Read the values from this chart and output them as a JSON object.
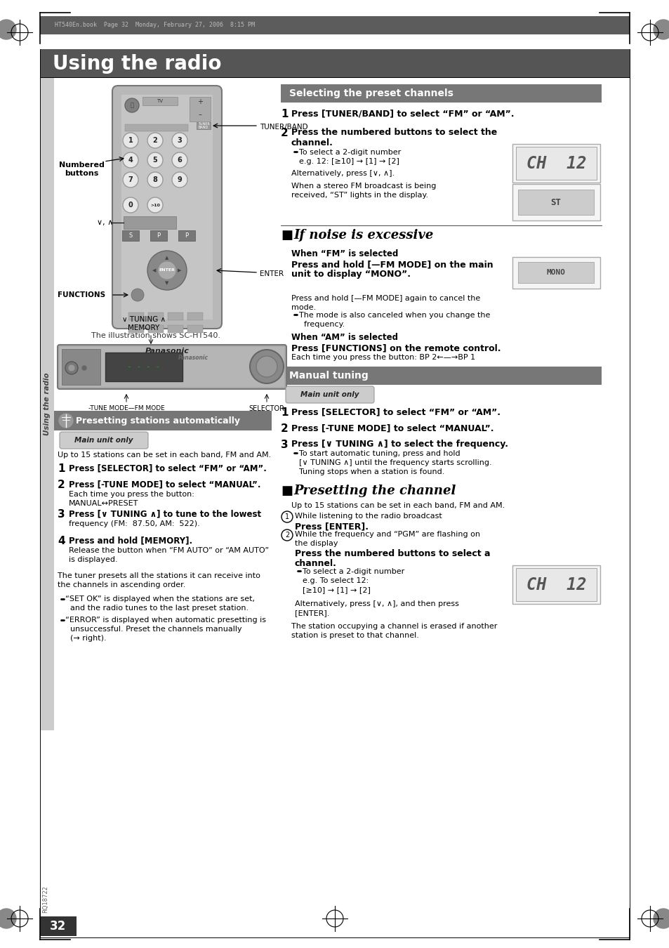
{
  "page_bg": "#ffffff",
  "header_bg": "#5a5a5a",
  "header_text": "Using the radio",
  "header_text_color": "#ffffff",
  "top_bar_text": "HT540En.book  Page 32  Monday, February 27, 2006  8:15 PM",
  "top_bar_bg": "#5a5a5a",
  "selecting_header": "Selecting the preset channels",
  "manual_tuning_header": "Manual tuning",
  "presetting_auto_header": "Presetting stations automatically",
  "main_unit_only": "Main unit only",
  "page_number": "32",
  "sidebar_text": "Using the radio"
}
